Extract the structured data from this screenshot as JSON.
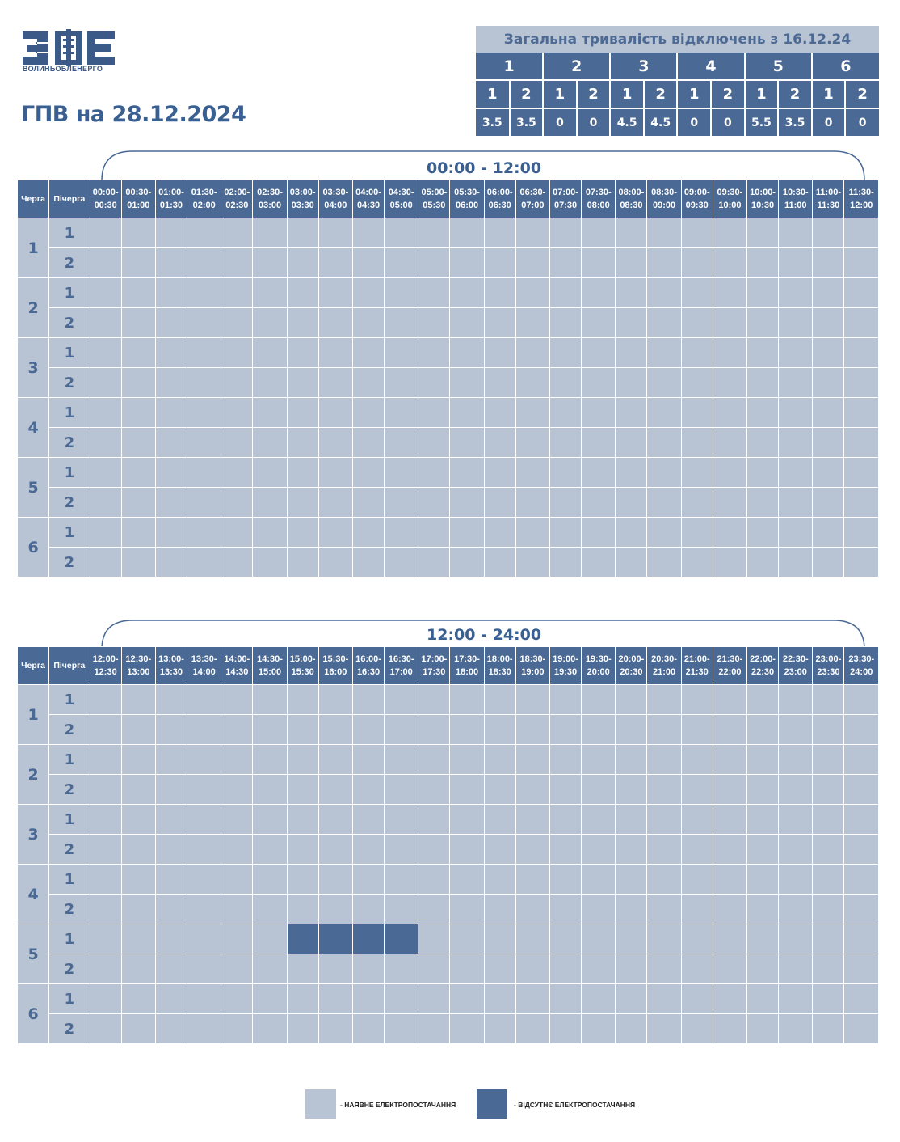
{
  "logo": {
    "text": "ВОЛИНЬОБЛЕНЕРГО"
  },
  "title": "ГПВ на 28.12.2024",
  "summary": {
    "heading": "Загальна тривалість відключень з 16.12.24",
    "queues": [
      "1",
      "2",
      "3",
      "4",
      "5",
      "6"
    ],
    "subqueues": [
      "1",
      "2",
      "1",
      "2",
      "1",
      "2",
      "1",
      "2",
      "1",
      "2",
      "1",
      "2"
    ],
    "values": [
      "3.5",
      "3.5",
      "0",
      "0",
      "4.5",
      "4.5",
      "0",
      "0",
      "5.5",
      "3.5",
      "0",
      "0"
    ]
  },
  "colors": {
    "available": "#b8c4d4",
    "outage": "#4a6994",
    "title": "#3a5f91"
  },
  "sections": [
    {
      "range": "00:00 - 12:00",
      "header_queue": "Черга",
      "header_sub": "Пічерга",
      "slots": [
        [
          "00:00-",
          "00:30"
        ],
        [
          "00:30-",
          "01:00"
        ],
        [
          "01:00-",
          "01:30"
        ],
        [
          "01:30-",
          "02:00"
        ],
        [
          "02:00-",
          "02:30"
        ],
        [
          "02:30-",
          "03:00"
        ],
        [
          "03:00-",
          "03:30"
        ],
        [
          "03:30-",
          "04:00"
        ],
        [
          "04:00-",
          "04:30"
        ],
        [
          "04:30-",
          "05:00"
        ],
        [
          "05:00-",
          "05:30"
        ],
        [
          "05:30-",
          "06:00"
        ],
        [
          "06:00-",
          "06:30"
        ],
        [
          "06:30-",
          "07:00"
        ],
        [
          "07:00-",
          "07:30"
        ],
        [
          "07:30-",
          "08:00"
        ],
        [
          "08:00-",
          "08:30"
        ],
        [
          "08:30-",
          "09:00"
        ],
        [
          "09:00-",
          "09:30"
        ],
        [
          "09:30-",
          "10:00"
        ],
        [
          "10:00-",
          "10:30"
        ],
        [
          "10:30-",
          "11:00"
        ],
        [
          "11:00-",
          "11:30"
        ],
        [
          "11:30-",
          "12:00"
        ]
      ],
      "queues": [
        {
          "label": "1",
          "sub": [
            {
              "label": "1",
              "off": []
            },
            {
              "label": "2",
              "off": []
            }
          ]
        },
        {
          "label": "2",
          "sub": [
            {
              "label": "1",
              "off": []
            },
            {
              "label": "2",
              "off": []
            }
          ]
        },
        {
          "label": "3",
          "sub": [
            {
              "label": "1",
              "off": []
            },
            {
              "label": "2",
              "off": []
            }
          ]
        },
        {
          "label": "4",
          "sub": [
            {
              "label": "1",
              "off": []
            },
            {
              "label": "2",
              "off": []
            }
          ]
        },
        {
          "label": "5",
          "sub": [
            {
              "label": "1",
              "off": []
            },
            {
              "label": "2",
              "off": []
            }
          ]
        },
        {
          "label": "6",
          "sub": [
            {
              "label": "1",
              "off": []
            },
            {
              "label": "2",
              "off": []
            }
          ]
        }
      ]
    },
    {
      "range": "12:00 - 24:00",
      "header_queue": "Черга",
      "header_sub": "Пічерга",
      "slots": [
        [
          "12:00-",
          "12:30"
        ],
        [
          "12:30-",
          "13:00"
        ],
        [
          "13:00-",
          "13:30"
        ],
        [
          "13:30-",
          "14:00"
        ],
        [
          "14:00-",
          "14:30"
        ],
        [
          "14:30-",
          "15:00"
        ],
        [
          "15:00-",
          "15:30"
        ],
        [
          "15:30-",
          "16:00"
        ],
        [
          "16:00-",
          "16:30"
        ],
        [
          "16:30-",
          "17:00"
        ],
        [
          "17:00-",
          "17:30"
        ],
        [
          "17:30-",
          "18:00"
        ],
        [
          "18:00-",
          "18:30"
        ],
        [
          "18:30-",
          "19:00"
        ],
        [
          "19:00-",
          "19:30"
        ],
        [
          "19:30-",
          "20:00"
        ],
        [
          "20:00-",
          "20:30"
        ],
        [
          "20:30-",
          "21:00"
        ],
        [
          "21:00-",
          "21:30"
        ],
        [
          "21:30-",
          "22:00"
        ],
        [
          "22:00-",
          "22:30"
        ],
        [
          "22:30-",
          "23:00"
        ],
        [
          "23:00-",
          "23:30"
        ],
        [
          "23:30-",
          "24:00"
        ]
      ],
      "queues": [
        {
          "label": "1",
          "sub": [
            {
              "label": "1",
              "off": []
            },
            {
              "label": "2",
              "off": []
            }
          ]
        },
        {
          "label": "2",
          "sub": [
            {
              "label": "1",
              "off": []
            },
            {
              "label": "2",
              "off": []
            }
          ]
        },
        {
          "label": "3",
          "sub": [
            {
              "label": "1",
              "off": []
            },
            {
              "label": "2",
              "off": []
            }
          ]
        },
        {
          "label": "4",
          "sub": [
            {
              "label": "1",
              "off": []
            },
            {
              "label": "2",
              "off": []
            }
          ]
        },
        {
          "label": "5",
          "sub": [
            {
              "label": "1",
              "off": [
                "15:00-15:30",
                "15:30-16:00",
                "16:00-16:30",
                "16:30-17:00"
              ]
            },
            {
              "label": "2",
              "off": []
            }
          ]
        },
        {
          "label": "6",
          "sub": [
            {
              "label": "1",
              "off": []
            },
            {
              "label": "2",
              "off": []
            }
          ]
        }
      ]
    }
  ],
  "legend": {
    "available": "- НАЯВНЕ ЕЛЕКТРОПОСТАЧАННЯ",
    "outage": "- ВІДСУТНЄ ЕЛЕКТРОПОСТАЧАННЯ"
  }
}
